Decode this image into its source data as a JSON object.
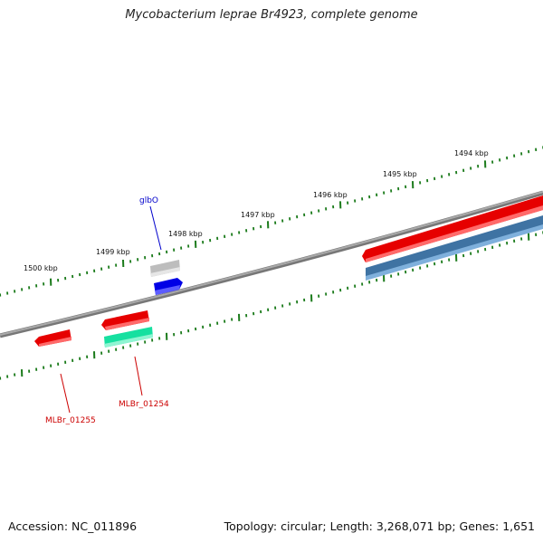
{
  "title": "Mycobacterium leprae Br4923, complete genome",
  "footer": {
    "accession": "Accession: NC_011896",
    "summary": "Topology: circular; Length: 3,268,071 bp; Genes: 1,651"
  },
  "ticks": {
    "labels": [
      "1494 kbp",
      "1495 kbp",
      "1496 kbp",
      "1497 kbp",
      "1498 kbp",
      "1499 kbp",
      "1500 kbp"
    ],
    "color": "#1a7a1a"
  },
  "genes": [
    {
      "label": "glbO",
      "color": "#0000cc"
    },
    {
      "label": "MLBr_01254",
      "color": "#cc0000"
    },
    {
      "label": "MLBr_01255",
      "color": "#cc0000"
    }
  ],
  "colors": {
    "backbone": "#888888",
    "red": "#ee0000",
    "blue": "#0000ee",
    "grey": "#bdbdbd",
    "steel": "#3f76a8",
    "green": "#19e6a0"
  }
}
